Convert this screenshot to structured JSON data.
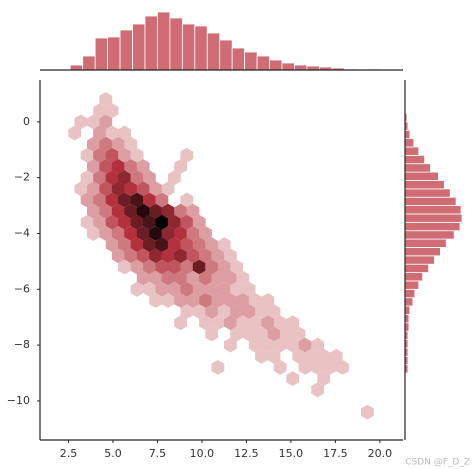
{
  "chart_data": {
    "type": "hexbin",
    "xlim": [
      0.9,
      21.3
    ],
    "ylim": [
      -11.4,
      1.5
    ],
    "xticks": [
      2.5,
      {
        "value": 5,
        "label": "5.0"
      },
      7.5,
      {
        "value": 10,
        "label": "10.0"
      },
      12.5,
      {
        "value": 15,
        "label": "15.0"
      },
      17.5,
      {
        "value": 20,
        "label": "20.0"
      }
    ],
    "yticks": [
      0,
      {
        "value": -2,
        "label": "−2"
      },
      {
        "value": -4,
        "label": "−4"
      },
      {
        "value": -6,
        "label": "−6"
      },
      {
        "value": -8,
        "label": "−8"
      },
      {
        "value": -10,
        "label": "−10"
      }
    ],
    "color": "#b3313c",
    "hexes": [
      [
        4.6,
        0.8,
        1
      ],
      [
        4.25,
        0.4,
        1
      ],
      [
        4.95,
        0.4,
        1
      ],
      [
        3.2,
        0,
        1
      ],
      [
        3.9,
        0,
        1
      ],
      [
        4.6,
        0,
        2
      ],
      [
        2.85,
        -0.4,
        1
      ],
      [
        4.25,
        -0.4,
        2
      ],
      [
        4.95,
        -0.4,
        1
      ],
      [
        5.65,
        -0.4,
        1
      ],
      [
        3.9,
        -0.8,
        2
      ],
      [
        4.6,
        -0.8,
        3
      ],
      [
        5.3,
        -0.8,
        2
      ],
      [
        6.0,
        -0.8,
        1
      ],
      [
        3.55,
        -1.2,
        1
      ],
      [
        4.25,
        -1.2,
        3
      ],
      [
        4.95,
        -1.2,
        4
      ],
      [
        5.65,
        -1.2,
        2
      ],
      [
        6.35,
        -1.2,
        1
      ],
      [
        9.15,
        -1.2,
        1
      ],
      [
        3.9,
        -1.6,
        2
      ],
      [
        4.6,
        -1.6,
        4
      ],
      [
        5.3,
        -1.6,
        5
      ],
      [
        6.0,
        -1.6,
        3
      ],
      [
        6.7,
        -1.6,
        2
      ],
      [
        8.8,
        -1.6,
        1
      ],
      [
        3.55,
        -2,
        1
      ],
      [
        4.25,
        -2,
        3
      ],
      [
        4.95,
        -2,
        5
      ],
      [
        5.65,
        -2,
        6
      ],
      [
        6.35,
        -2,
        3
      ],
      [
        7.05,
        -2,
        2
      ],
      [
        8.45,
        -2,
        1
      ],
      [
        3.2,
        -2.4,
        1
      ],
      [
        3.9,
        -2.4,
        2
      ],
      [
        4.6,
        -2.4,
        4
      ],
      [
        5.3,
        -2.4,
        6
      ],
      [
        6.0,
        -2.4,
        5
      ],
      [
        6.7,
        -2.4,
        4
      ],
      [
        7.4,
        -2.4,
        2
      ],
      [
        8.1,
        -2.4,
        1
      ],
      [
        3.55,
        -2.8,
        2
      ],
      [
        4.25,
        -2.8,
        3
      ],
      [
        4.95,
        -2.8,
        5
      ],
      [
        5.65,
        -2.8,
        7
      ],
      [
        6.35,
        -2.8,
        8
      ],
      [
        7.05,
        -2.8,
        5
      ],
      [
        7.75,
        -2.8,
        3
      ],
      [
        9.15,
        -2.8,
        1
      ],
      [
        3.9,
        -3.2,
        2
      ],
      [
        4.6,
        -3.2,
        3
      ],
      [
        5.3,
        -3.2,
        5
      ],
      [
        6.0,
        -3.2,
        7
      ],
      [
        6.7,
        -3.2,
        9
      ],
      [
        7.4,
        -3.2,
        7
      ],
      [
        8.1,
        -3.2,
        6
      ],
      [
        8.8,
        -3.2,
        3
      ],
      [
        9.5,
        -3.2,
        2
      ],
      [
        3.55,
        -3.6,
        1
      ],
      [
        4.25,
        -3.6,
        2
      ],
      [
        4.95,
        -3.6,
        4
      ],
      [
        5.65,
        -3.6,
        5
      ],
      [
        6.35,
        -3.6,
        7
      ],
      [
        7.05,
        -3.6,
        8
      ],
      [
        7.75,
        -3.6,
        10
      ],
      [
        8.45,
        -3.6,
        6
      ],
      [
        9.15,
        -3.6,
        4
      ],
      [
        9.85,
        -3.6,
        2
      ],
      [
        3.9,
        -4,
        1
      ],
      [
        4.6,
        -4,
        2
      ],
      [
        5.3,
        -4,
        3
      ],
      [
        6.0,
        -4,
        5
      ],
      [
        6.7,
        -4,
        7
      ],
      [
        7.4,
        -4,
        9
      ],
      [
        8.1,
        -4,
        6
      ],
      [
        8.8,
        -4,
        5
      ],
      [
        9.5,
        -4,
        3
      ],
      [
        10.2,
        -4,
        2
      ],
      [
        4.95,
        -4.4,
        2
      ],
      [
        5.65,
        -4.4,
        3
      ],
      [
        6.35,
        -4.4,
        5
      ],
      [
        7.05,
        -4.4,
        7
      ],
      [
        7.75,
        -4.4,
        8
      ],
      [
        8.45,
        -4.4,
        5
      ],
      [
        9.15,
        -4.4,
        4
      ],
      [
        9.85,
        -4.4,
        3
      ],
      [
        10.55,
        -4.4,
        2
      ],
      [
        11.25,
        -4.4,
        1
      ],
      [
        5.3,
        -4.8,
        2
      ],
      [
        6.0,
        -4.8,
        3
      ],
      [
        6.7,
        -4.8,
        4
      ],
      [
        7.4,
        -4.8,
        6
      ],
      [
        8.1,
        -4.8,
        5
      ],
      [
        8.8,
        -4.8,
        6
      ],
      [
        9.5,
        -4.8,
        4
      ],
      [
        10.2,
        -4.8,
        3
      ],
      [
        10.9,
        -4.8,
        2
      ],
      [
        11.6,
        -4.8,
        1
      ],
      [
        5.65,
        -5.2,
        1
      ],
      [
        6.35,
        -5.2,
        2
      ],
      [
        7.05,
        -5.2,
        3
      ],
      [
        7.75,
        -5.2,
        4
      ],
      [
        8.45,
        -5.2,
        4
      ],
      [
        9.15,
        -5.2,
        3
      ],
      [
        9.85,
        -5.2,
        7
      ],
      [
        10.55,
        -5.2,
        3
      ],
      [
        11.25,
        -5.2,
        2
      ],
      [
        11.95,
        -5.2,
        1
      ],
      [
        6.7,
        -5.6,
        2
      ],
      [
        7.4,
        -5.6,
        2
      ],
      [
        8.1,
        -5.6,
        3
      ],
      [
        8.8,
        -5.6,
        3
      ],
      [
        9.5,
        -5.6,
        2
      ],
      [
        10.2,
        -5.6,
        3
      ],
      [
        10.9,
        -5.6,
        2
      ],
      [
        11.6,
        -5.6,
        2
      ],
      [
        12.3,
        -5.6,
        1
      ],
      [
        6.35,
        -6,
        1
      ],
      [
        7.05,
        -6,
        1
      ],
      [
        7.75,
        -6,
        2
      ],
      [
        8.45,
        -6,
        2
      ],
      [
        9.15,
        -6,
        3
      ],
      [
        9.85,
        -6,
        2
      ],
      [
        10.55,
        -6,
        2
      ],
      [
        11.25,
        -6,
        2
      ],
      [
        11.95,
        -6,
        1
      ],
      [
        12.65,
        -6,
        1
      ],
      [
        7.4,
        -6.4,
        1
      ],
      [
        8.1,
        -6.4,
        1
      ],
      [
        8.8,
        -6.4,
        2
      ],
      [
        9.5,
        -6.4,
        2
      ],
      [
        10.2,
        -6.4,
        3
      ],
      [
        10.9,
        -6.4,
        2
      ],
      [
        11.6,
        -6.4,
        2
      ],
      [
        12.3,
        -6.4,
        2
      ],
      [
        13.0,
        -6.4,
        1
      ],
      [
        13.7,
        -6.4,
        1
      ],
      [
        9.15,
        -6.8,
        1
      ],
      [
        9.85,
        -6.8,
        1
      ],
      [
        10.55,
        -6.8,
        2
      ],
      [
        11.25,
        -6.8,
        1
      ],
      [
        11.95,
        -6.8,
        2
      ],
      [
        12.65,
        -6.8,
        2
      ],
      [
        13.35,
        -6.8,
        1
      ],
      [
        14.05,
        -6.8,
        1
      ],
      [
        8.8,
        -7.2,
        1
      ],
      [
        10.2,
        -7.2,
        1
      ],
      [
        10.9,
        -7.2,
        1
      ],
      [
        11.6,
        -7.2,
        2
      ],
      [
        12.3,
        -7.2,
        1
      ],
      [
        13.0,
        -7.2,
        1
      ],
      [
        13.7,
        -7.2,
        2
      ],
      [
        14.4,
        -7.2,
        1
      ],
      [
        15.1,
        -7.2,
        1
      ],
      [
        10.55,
        -7.6,
        1
      ],
      [
        11.95,
        -7.6,
        1
      ],
      [
        12.65,
        -7.6,
        1
      ],
      [
        13.35,
        -7.6,
        1
      ],
      [
        14.05,
        -7.6,
        2
      ],
      [
        14.75,
        -7.6,
        1
      ],
      [
        15.45,
        -7.6,
        1
      ],
      [
        11.6,
        -8,
        1
      ],
      [
        13.0,
        -8,
        1
      ],
      [
        13.7,
        -8,
        1
      ],
      [
        14.4,
        -8,
        1
      ],
      [
        15.1,
        -8,
        1
      ],
      [
        15.8,
        -8,
        2
      ],
      [
        16.5,
        -8,
        1
      ],
      [
        13.35,
        -8.4,
        1
      ],
      [
        14.05,
        -8.4,
        1
      ],
      [
        15.45,
        -8.4,
        1
      ],
      [
        16.15,
        -8.4,
        1
      ],
      [
        16.85,
        -8.4,
        1
      ],
      [
        17.55,
        -8.4,
        1
      ],
      [
        10.9,
        -8.8,
        1
      ],
      [
        14.4,
        -8.8,
        1
      ],
      [
        15.8,
        -8.8,
        1
      ],
      [
        16.5,
        -8.8,
        1
      ],
      [
        17.2,
        -8.8,
        1
      ],
      [
        17.9,
        -8.8,
        1
      ],
      [
        15.1,
        -9.2,
        1
      ],
      [
        16.85,
        -9.2,
        1
      ],
      [
        16.5,
        -9.6,
        1
      ],
      [
        19.3,
        -10.4,
        1
      ]
    ],
    "x_hist": {
      "color": "#cf6c74",
      "bins": [
        2.6,
        3.3,
        4.0,
        4.7,
        5.4,
        6.1,
        6.8,
        7.5,
        8.2,
        8.9,
        9.6,
        10.3,
        11.0,
        11.7,
        12.4,
        13.1,
        13.8,
        14.5,
        15.2,
        15.9,
        16.6,
        17.3,
        18.0,
        18.7,
        19.4,
        20.1
      ],
      "counts": [
        5,
        14,
        32,
        33,
        40,
        46,
        54,
        58,
        52,
        46,
        44,
        37,
        30,
        22,
        18,
        14,
        10,
        7,
        5,
        4,
        3,
        2,
        1,
        0,
        1
      ]
    },
    "y_hist": {
      "color": "#cf6c74",
      "bins": [
        -9.0,
        -8.7,
        -8.4,
        -8.1,
        -7.8,
        -7.5,
        -7.2,
        -6.9,
        -6.6,
        -6.3,
        -6.0,
        -5.7,
        -5.4,
        -5.1,
        -4.8,
        -4.5,
        -4.2,
        -3.9,
        -3.6,
        -3.3,
        -3.0,
        -2.7,
        -2.4,
        -2.1,
        -1.8,
        -1.5,
        -1.2,
        -0.9,
        -0.6,
        -0.3,
        0.0,
        0.3
      ],
      "counts": [
        3,
        3,
        3,
        3,
        3,
        4,
        4,
        5,
        8,
        10,
        14,
        18,
        24,
        30,
        36,
        42,
        50,
        56,
        58,
        57,
        52,
        46,
        40,
        34,
        26,
        20,
        14,
        9,
        5,
        3,
        2
      ]
    },
    "watermark": "CSDN @F_D_Z"
  }
}
